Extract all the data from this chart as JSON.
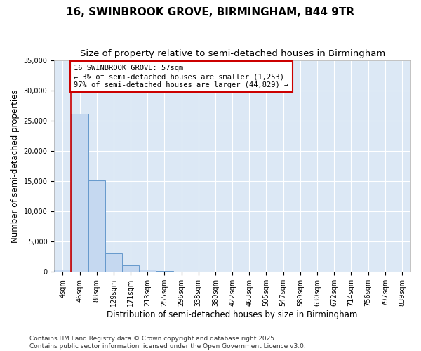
{
  "title": "16, SWINBROOK GROVE, BIRMINGHAM, B44 9TR",
  "subtitle": "Size of property relative to semi-detached houses in Birmingham",
  "xlabel": "Distribution of semi-detached houses by size in Birmingham",
  "ylabel": "Number of semi-detached properties",
  "categories": [
    "4sqm",
    "46sqm",
    "88sqm",
    "129sqm",
    "171sqm",
    "213sqm",
    "255sqm",
    "296sqm",
    "338sqm",
    "380sqm",
    "422sqm",
    "463sqm",
    "505sqm",
    "547sqm",
    "589sqm",
    "630sqm",
    "672sqm",
    "714sqm",
    "756sqm",
    "797sqm",
    "839sqm"
  ],
  "bar_values": [
    400,
    26100,
    15100,
    3100,
    1100,
    400,
    100,
    50,
    10,
    5,
    3,
    2,
    1,
    1,
    0,
    0,
    0,
    0,
    0,
    0,
    0
  ],
  "bar_color": "#c5d8f0",
  "bar_edge_color": "#6699cc",
  "figure_bg": "#ffffff",
  "plot_bg": "#dce8f5",
  "grid_color": "#ffffff",
  "red_line_x": 0.5,
  "red_line_color": "#cc0000",
  "annotation_text": "16 SWINBROOK GROVE: 57sqm\n← 3% of semi-detached houses are smaller (1,253)\n97% of semi-detached houses are larger (44,829) →",
  "annotation_box_facecolor": "#ffffff",
  "annotation_box_edgecolor": "#cc0000",
  "ylim": [
    0,
    35000
  ],
  "yticks": [
    0,
    5000,
    10000,
    15000,
    20000,
    25000,
    30000,
    35000
  ],
  "footer_line1": "Contains HM Land Registry data © Crown copyright and database right 2025.",
  "footer_line2": "Contains public sector information licensed under the Open Government Licence v3.0.",
  "title_fontsize": 11,
  "subtitle_fontsize": 9.5,
  "axis_label_fontsize": 8.5,
  "tick_fontsize": 7,
  "annotation_fontsize": 7.5,
  "footer_fontsize": 6.5
}
